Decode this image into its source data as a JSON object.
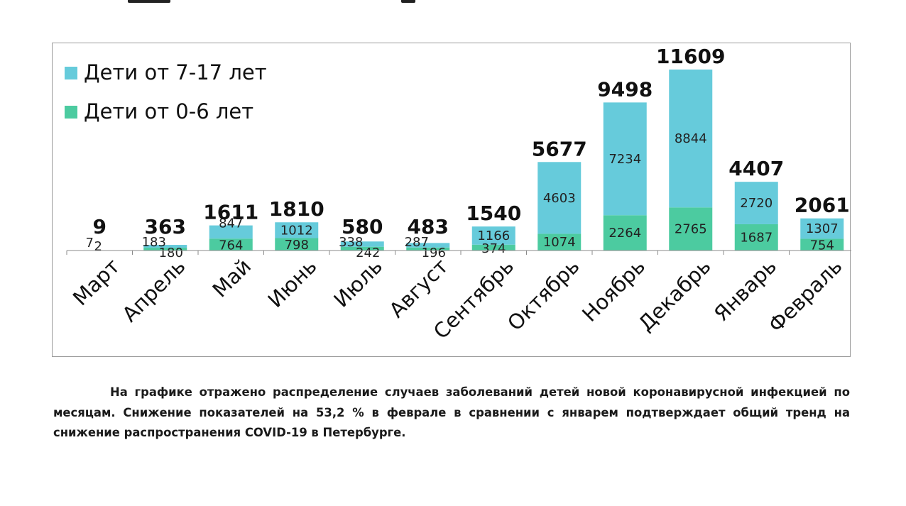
{
  "chart_data": {
    "type": "bar",
    "stacked": true,
    "categories": [
      "Март",
      "Апрель",
      "Май",
      "Июнь",
      "Июль",
      "Август",
      "Сентябрь",
      "Октябрь",
      "Ноябрь",
      "Декабрь",
      "Январь",
      "Февраль"
    ],
    "series": [
      {
        "name": "Дети от 0-6 лет",
        "color": "#4ccba0",
        "values": [
          2,
          180,
          764,
          798,
          242,
          196,
          374,
          1074,
          2264,
          2765,
          1687,
          754
        ]
      },
      {
        "name": "Дети от 7-17 лет",
        "color": "#66cbdb",
        "values": [
          7,
          183,
          847,
          1012,
          338,
          287,
          1166,
          4603,
          7234,
          8844,
          2720,
          1307
        ]
      }
    ],
    "totals": [
      9,
      363,
      1611,
      1810,
      580,
      483,
      1540,
      5677,
      9498,
      11609,
      4407,
      2061
    ],
    "ylim": [
      0,
      11609
    ],
    "grid": false,
    "legend_position": "top-left"
  },
  "caption": "На графике отражено распределение случаев заболеваний детей новой коронавирусной инфекцией по месяцам. Снижение показателей на 53,2 % в феврале в сравнении с январем подтверждает общий тренд на снижение распространения COVID-19 в Петербурге."
}
